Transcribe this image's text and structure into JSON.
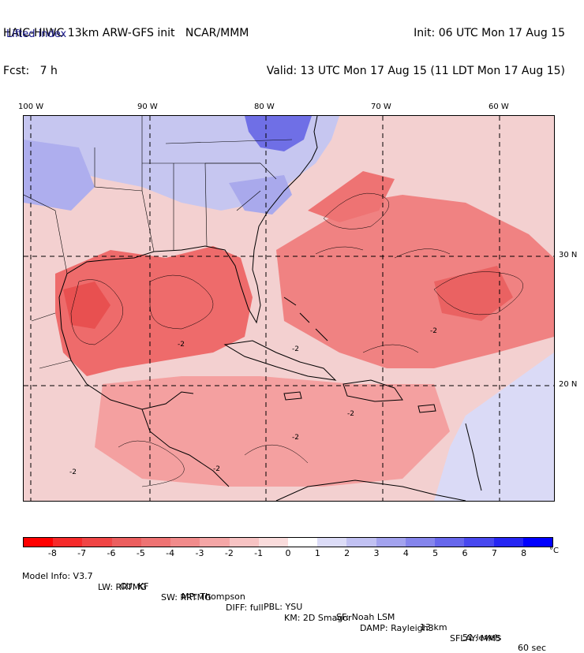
{
  "header": {
    "model_line": "HAIC-HIWC 13km ARW-GFS init   NCAR/MMM",
    "fcst_line": "Fcst:   7 h",
    "init_line": "Init: 06 UTC Mon 17 Aug 15",
    "valid_line": "Valid: 13 UTC Mon 17 Aug 15 (11 LDT Mon 17 Aug 15)"
  },
  "field_name": "Lifted index",
  "lon_labels": [
    "100 W",
    "90 W",
    "80 W",
    "70 W",
    "60 W"
  ],
  "lat_labels": [
    "30 N",
    "20 N"
  ],
  "contour_labels": [
    "-2",
    "-2",
    "-2",
    "-2",
    "-2",
    "-2",
    "-2"
  ],
  "colorbar": {
    "labels": [
      "-8",
      "-7",
      "-6",
      "-5",
      "-4",
      "-3",
      "-2",
      "-1",
      "0",
      "1",
      "2",
      "3",
      "4",
      "5",
      "6",
      "7",
      "8"
    ],
    "unit": "°C",
    "colors": [
      "#ff0000",
      "#f62a2a",
      "#f04545",
      "#eb5e5e",
      "#ee7373",
      "#f18b8b",
      "#f4a6a6",
      "#f7c3c3",
      "#fadcdc",
      "#ffffff",
      "#dcdcf7",
      "#c1c1f2",
      "#a3a3ee",
      "#8585ec",
      "#6767ec",
      "#4848ef",
      "#2626f3",
      "#0000ff"
    ]
  },
  "footer": {
    "line1": [
      "Model Info: V3.7",
      "CU: KF",
      "MP: Thompson",
      "PBL: YSU",
      "SF: Noah LSM",
      "13 km",
      "51 levels",
      "60 sec"
    ],
    "line2": [
      "LW: RRTMG",
      "SW: RRTMG",
      "DIFF: full",
      "KM: 2D Smagor",
      "DAMP: Rayleigh3",
      "SFLAY: MM5"
    ]
  }
}
